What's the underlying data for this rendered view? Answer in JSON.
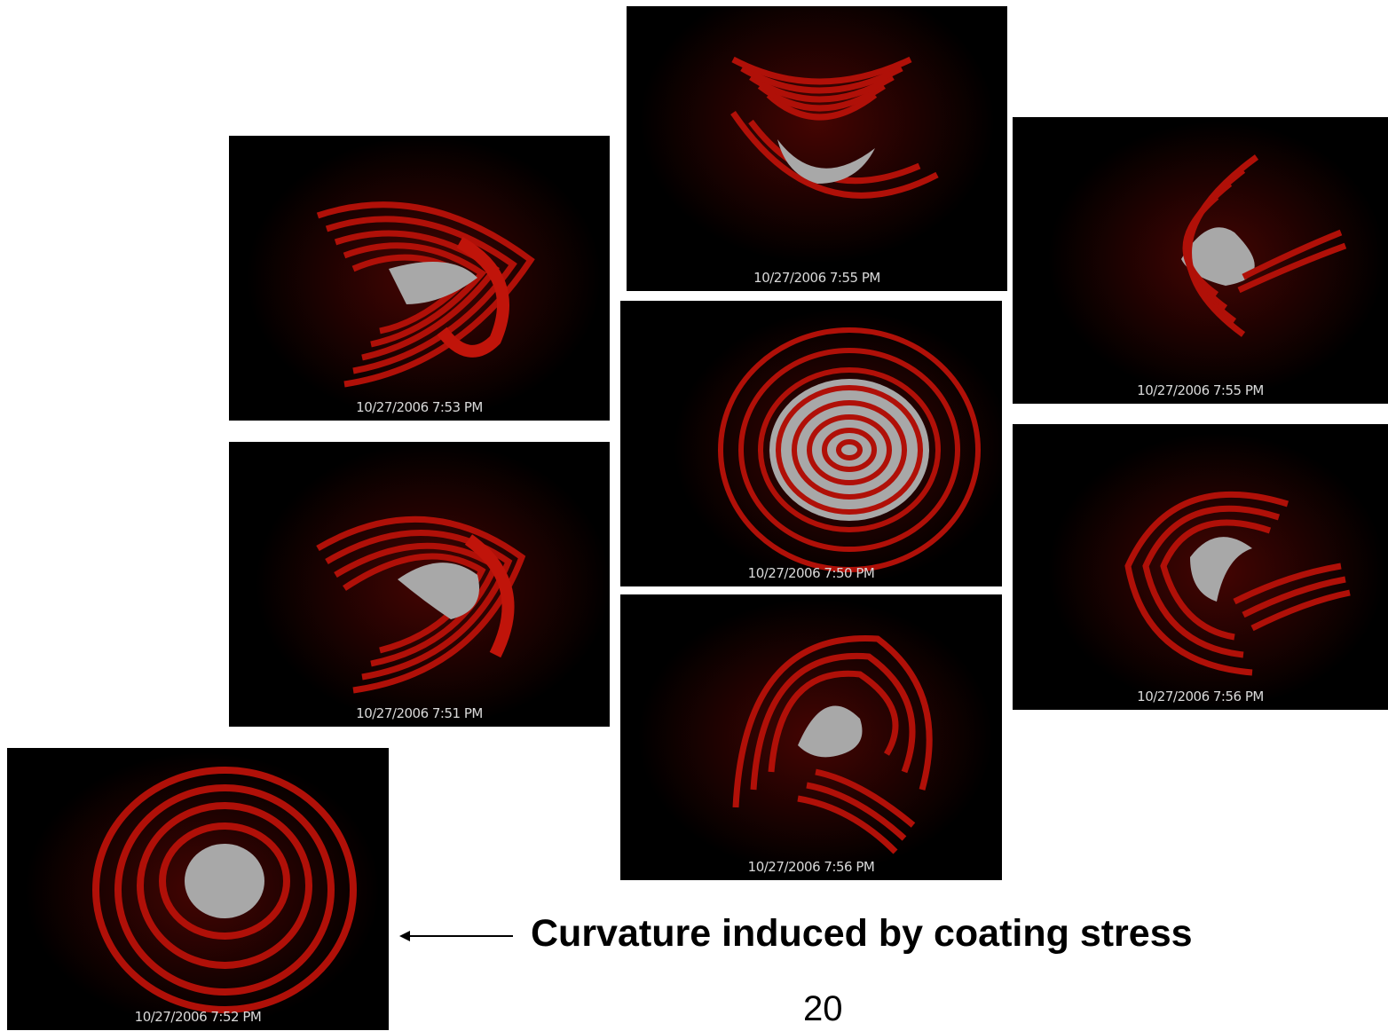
{
  "frames": [
    {
      "id": "f753",
      "timestamp": "10/27/2006  7:53 PM"
    },
    {
      "id": "f751",
      "timestamp": "10/27/2006  7:51 PM"
    },
    {
      "id": "f752",
      "timestamp": "10/27/2006  7:52 PM"
    },
    {
      "id": "f755a",
      "timestamp": "10/27/2006  7:55 PM"
    },
    {
      "id": "f750",
      "timestamp": "10/27/2006  7:50 PM"
    },
    {
      "id": "f756a",
      "timestamp": "10/27/2006  7:56 PM"
    },
    {
      "id": "f755b",
      "timestamp": "10/27/2006  7:55 PM"
    },
    {
      "id": "f756b",
      "timestamp": "10/27/2006  7:56 PM"
    }
  ],
  "caption": "Curvature induced by coating stress",
  "page_number": "20",
  "colors": {
    "fringe_red": "#b01008",
    "glow_red": "#5a0000",
    "center_gray": "#a8a8a8",
    "background": "#000000"
  }
}
